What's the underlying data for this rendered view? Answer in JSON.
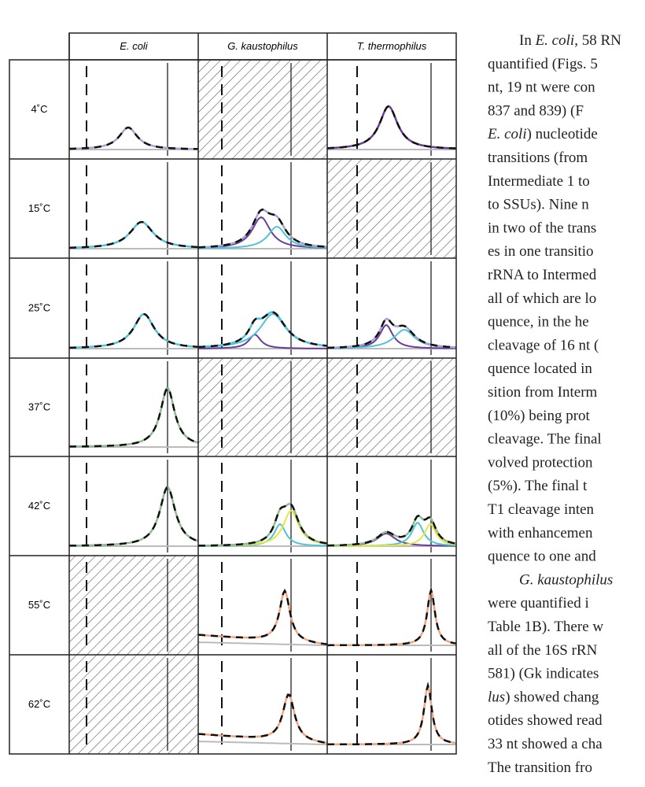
{
  "figure": {
    "columns": [
      "E. coli",
      "G. kaustophilus",
      "T. thermophilus"
    ],
    "rows": [
      "4˚C",
      "15˚C",
      "25˚C",
      "37˚C",
      "42˚C",
      "55˚C",
      "62˚C"
    ]
  },
  "text": {
    "lines": [
      [
        {
          "text": "In "
        },
        {
          "text": "E. coli",
          "italic": true
        },
        {
          "text": ", 58 RN"
        }
      ],
      [
        {
          "text": "quantified (Figs. 5"
        }
      ],
      [
        {
          "text": "nt, 19 nt were con"
        }
      ],
      [
        {
          "text": "837 and 839) (F"
        }
      ],
      [
        {
          "text": "E. coli",
          "italic": true
        },
        {
          "text": ") nucleotide"
        }
      ],
      [
        {
          "text": "transitions (from"
        }
      ],
      [
        {
          "text": "Intermediate 1 to"
        }
      ],
      [
        {
          "text": "to SSUs). Nine n"
        }
      ],
      [
        {
          "text": "in two of the trans"
        }
      ],
      [
        {
          "text": "es in one transitio"
        }
      ],
      [
        {
          "text": "rRNA to Intermed"
        }
      ],
      [
        {
          "text": "all of which are lo"
        }
      ],
      [
        {
          "text": "quence, in the he"
        }
      ],
      [
        {
          "text": "cleavage of 16 nt ("
        }
      ],
      [
        {
          "text": "quence located in"
        }
      ],
      [
        {
          "text": "sition from Interm"
        }
      ],
      [
        {
          "text": "(10%) being prot"
        }
      ],
      [
        {
          "text": "cleavage. The final"
        }
      ],
      [
        {
          "text": "volved protection"
        }
      ],
      [
        {
          "text": "(5%). The final t"
        }
      ],
      [
        {
          "text": "T1 cleavage inten"
        }
      ],
      [
        {
          "text": "with enhancemen"
        }
      ],
      [
        {
          "text": "quence to one and"
        }
      ],
      [
        {
          "text": "G. kaustophilus",
          "italic": true
        }
      ],
      [
        {
          "text": "were quantified i"
        }
      ],
      [
        {
          "text": "Table 1B). There w"
        }
      ],
      [
        {
          "text": "all of the 16S rRN"
        }
      ],
      [
        {
          "text": "581) (Gk indicates"
        }
      ],
      [
        {
          "text": "lus",
          "italic": true
        },
        {
          "text": ") showed chang"
        }
      ],
      [
        {
          "text": "otides showed read"
        }
      ],
      [
        {
          "text": "33 nt showed a cha"
        }
      ],
      [
        {
          "text": "The transition fro"
        }
      ]
    ]
  }
}
